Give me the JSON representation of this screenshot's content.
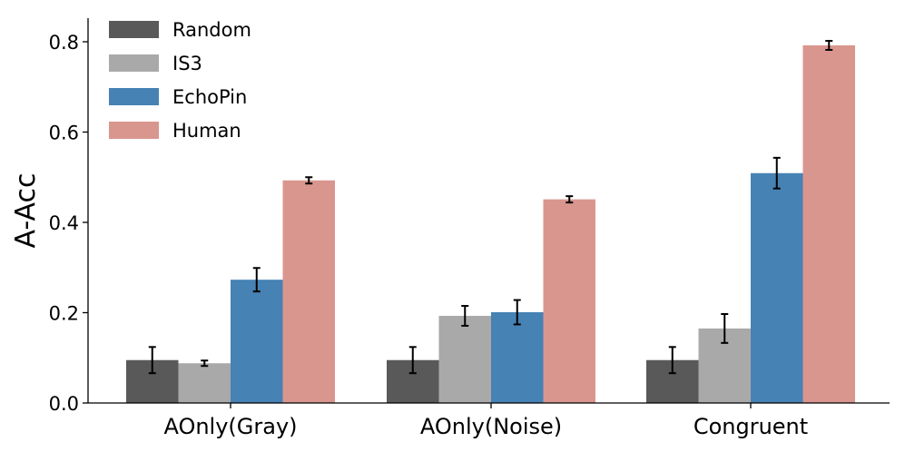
{
  "chart_data": {
    "type": "bar",
    "title": "",
    "xlabel": "",
    "ylabel": "A-Acc",
    "ylim": [
      0,
      0.85
    ],
    "yticks": [
      0.0,
      0.2,
      0.4,
      0.6,
      0.8
    ],
    "ytick_labels": [
      "0.0",
      "0.2",
      "0.4",
      "0.6",
      "0.8"
    ],
    "categories": [
      "AOnly(Gray)",
      "AOnly(Noise)",
      "Congruent"
    ],
    "legend_position": "top-left",
    "grid": false,
    "series": [
      {
        "name": "Random",
        "color": "#595959",
        "values": [
          0.095,
          0.095,
          0.095
        ],
        "errors": [
          0.029,
          0.029,
          0.029
        ]
      },
      {
        "name": "IS3",
        "color": "#a9a9a9",
        "values": [
          0.088,
          0.193,
          0.165
        ],
        "errors": [
          0.006,
          0.022,
          0.032
        ]
      },
      {
        "name": "EchoPin",
        "color": "#4682b4",
        "values": [
          0.273,
          0.201,
          0.509
        ],
        "errors": [
          0.026,
          0.027,
          0.034
        ]
      },
      {
        "name": "Human",
        "color": "#d9968e",
        "values": [
          0.493,
          0.451,
          0.792
        ],
        "errors": [
          0.007,
          0.007,
          0.01
        ]
      }
    ]
  }
}
